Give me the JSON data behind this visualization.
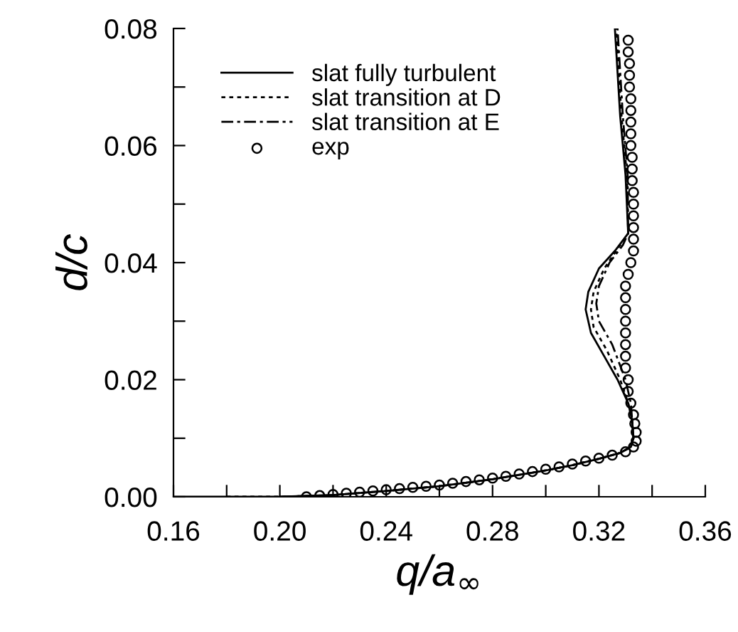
{
  "chart_data": {
    "type": "line",
    "xlabel": "q/a$_{∞}$",
    "ylabel": "d/c",
    "xlim": [
      0.16,
      0.36
    ],
    "ylim": [
      0,
      0.08
    ],
    "xticks": [
      0.16,
      {
        "value": 0.18,
        "label": null
      },
      {
        "value": 0.2,
        "label": "0.20"
      },
      {
        "value": 0.22,
        "label": null
      },
      0.24,
      {
        "value": 0.26,
        "label": null
      },
      0.28,
      {
        "value": 0.3,
        "label": null
      },
      0.32,
      {
        "value": 0.34,
        "label": null
      },
      0.36
    ],
    "yticks": [
      {
        "value": 0,
        "label": "0.00"
      },
      {
        "value": 0.01,
        "label": null
      },
      0.02,
      {
        "value": 0.03,
        "label": null
      },
      0.04,
      {
        "value": 0.05,
        "label": null
      },
      0.06,
      {
        "value": 0.07,
        "label": null
      },
      0.08
    ],
    "grid": false,
    "legend": "top left",
    "series": [
      {
        "name": "slat fully turbulent",
        "color": "#000000",
        "line_style": "solid",
        "marker": "none",
        "x": [
          0.16,
          0.2,
          0.22,
          0.24,
          0.26,
          0.28,
          0.3,
          0.31,
          0.32,
          0.328,
          0.332,
          0.333,
          0.3325,
          0.331,
          0.327,
          0.322,
          0.317,
          0.315,
          0.316,
          0.32,
          0.326,
          0.331,
          0.33,
          0.328,
          0.326
        ],
        "values": [
          0,
          0,
          0.0003,
          0.001,
          0.0018,
          0.003,
          0.0045,
          0.0054,
          0.0065,
          0.0075,
          0.0085,
          0.01,
          0.013,
          0.016,
          0.02,
          0.024,
          0.028,
          0.032,
          0.035,
          0.039,
          0.042,
          0.045,
          0.055,
          0.065,
          0.08
        ]
      },
      {
        "name": "slat transition at D",
        "color": "#000000",
        "line_style": "dotted",
        "marker": "none",
        "x": [
          0.18,
          0.2,
          0.22,
          0.24,
          0.26,
          0.28,
          0.3,
          0.31,
          0.32,
          0.328,
          0.332,
          0.333,
          0.3325,
          0.331,
          0.328,
          0.323,
          0.318,
          0.317,
          0.318,
          0.322,
          0.328,
          0.331,
          0.3305,
          0.3285,
          0.3265
        ],
        "values": [
          0,
          0,
          0.0003,
          0.001,
          0.0018,
          0.003,
          0.0045,
          0.0054,
          0.0065,
          0.0075,
          0.0085,
          0.01,
          0.013,
          0.016,
          0.02,
          0.025,
          0.029,
          0.032,
          0.035,
          0.039,
          0.043,
          0.045,
          0.055,
          0.065,
          0.08
        ]
      },
      {
        "name": "slat transition at E",
        "color": "#000000",
        "line_style": "dashdot",
        "marker": "none",
        "x": [
          0.2,
          0.22,
          0.24,
          0.26,
          0.28,
          0.3,
          0.31,
          0.32,
          0.328,
          0.332,
          0.333,
          0.3325,
          0.332,
          0.33,
          0.325,
          0.32,
          0.319,
          0.32,
          0.324,
          0.329,
          0.331,
          0.3308,
          0.329,
          0.327
        ],
        "values": [
          0,
          0.0003,
          0.001,
          0.0018,
          0.003,
          0.0045,
          0.0054,
          0.0065,
          0.0075,
          0.0085,
          0.01,
          0.013,
          0.016,
          0.02,
          0.026,
          0.03,
          0.033,
          0.036,
          0.04,
          0.043,
          0.045,
          0.055,
          0.065,
          0.08
        ]
      },
      {
        "name": "exp",
        "type": "scatter",
        "color": "#000000",
        "marker": "circle",
        "x": [
          0.21,
          0.215,
          0.22,
          0.225,
          0.23,
          0.235,
          0.24,
          0.245,
          0.25,
          0.255,
          0.26,
          0.265,
          0.27,
          0.275,
          0.28,
          0.285,
          0.29,
          0.295,
          0.3,
          0.305,
          0.31,
          0.315,
          0.32,
          0.325,
          0.33,
          0.333,
          0.334,
          0.334,
          0.3335,
          0.333,
          0.332,
          0.331,
          0.331,
          0.33,
          0.33,
          0.33,
          0.33,
          0.33,
          0.33,
          0.33,
          0.33,
          0.331,
          0.332,
          0.333,
          0.333,
          0.333,
          0.333,
          0.333,
          0.333,
          0.3325,
          0.3325,
          0.3325,
          0.332,
          0.332,
          0.332,
          0.332,
          0.332,
          0.3315,
          0.3315,
          0.3315,
          0.331,
          0.331
        ],
        "values": [
          0.0,
          0.0002,
          0.0004,
          0.0006,
          0.0008,
          0.001,
          0.0012,
          0.0014,
          0.0016,
          0.0018,
          0.002,
          0.0023,
          0.0026,
          0.0029,
          0.0032,
          0.0035,
          0.0039,
          0.0043,
          0.0047,
          0.0051,
          0.0056,
          0.0061,
          0.0066,
          0.0071,
          0.0077,
          0.0085,
          0.0095,
          0.011,
          0.0125,
          0.014,
          0.016,
          0.018,
          0.02,
          0.022,
          0.024,
          0.026,
          0.028,
          0.03,
          0.032,
          0.034,
          0.036,
          0.038,
          0.04,
          0.042,
          0.044,
          0.046,
          0.048,
          0.05,
          0.052,
          0.054,
          0.056,
          0.058,
          0.06,
          0.062,
          0.064,
          0.066,
          0.068,
          0.07,
          0.072,
          0.074,
          0.076,
          0.078
        ]
      }
    ]
  }
}
